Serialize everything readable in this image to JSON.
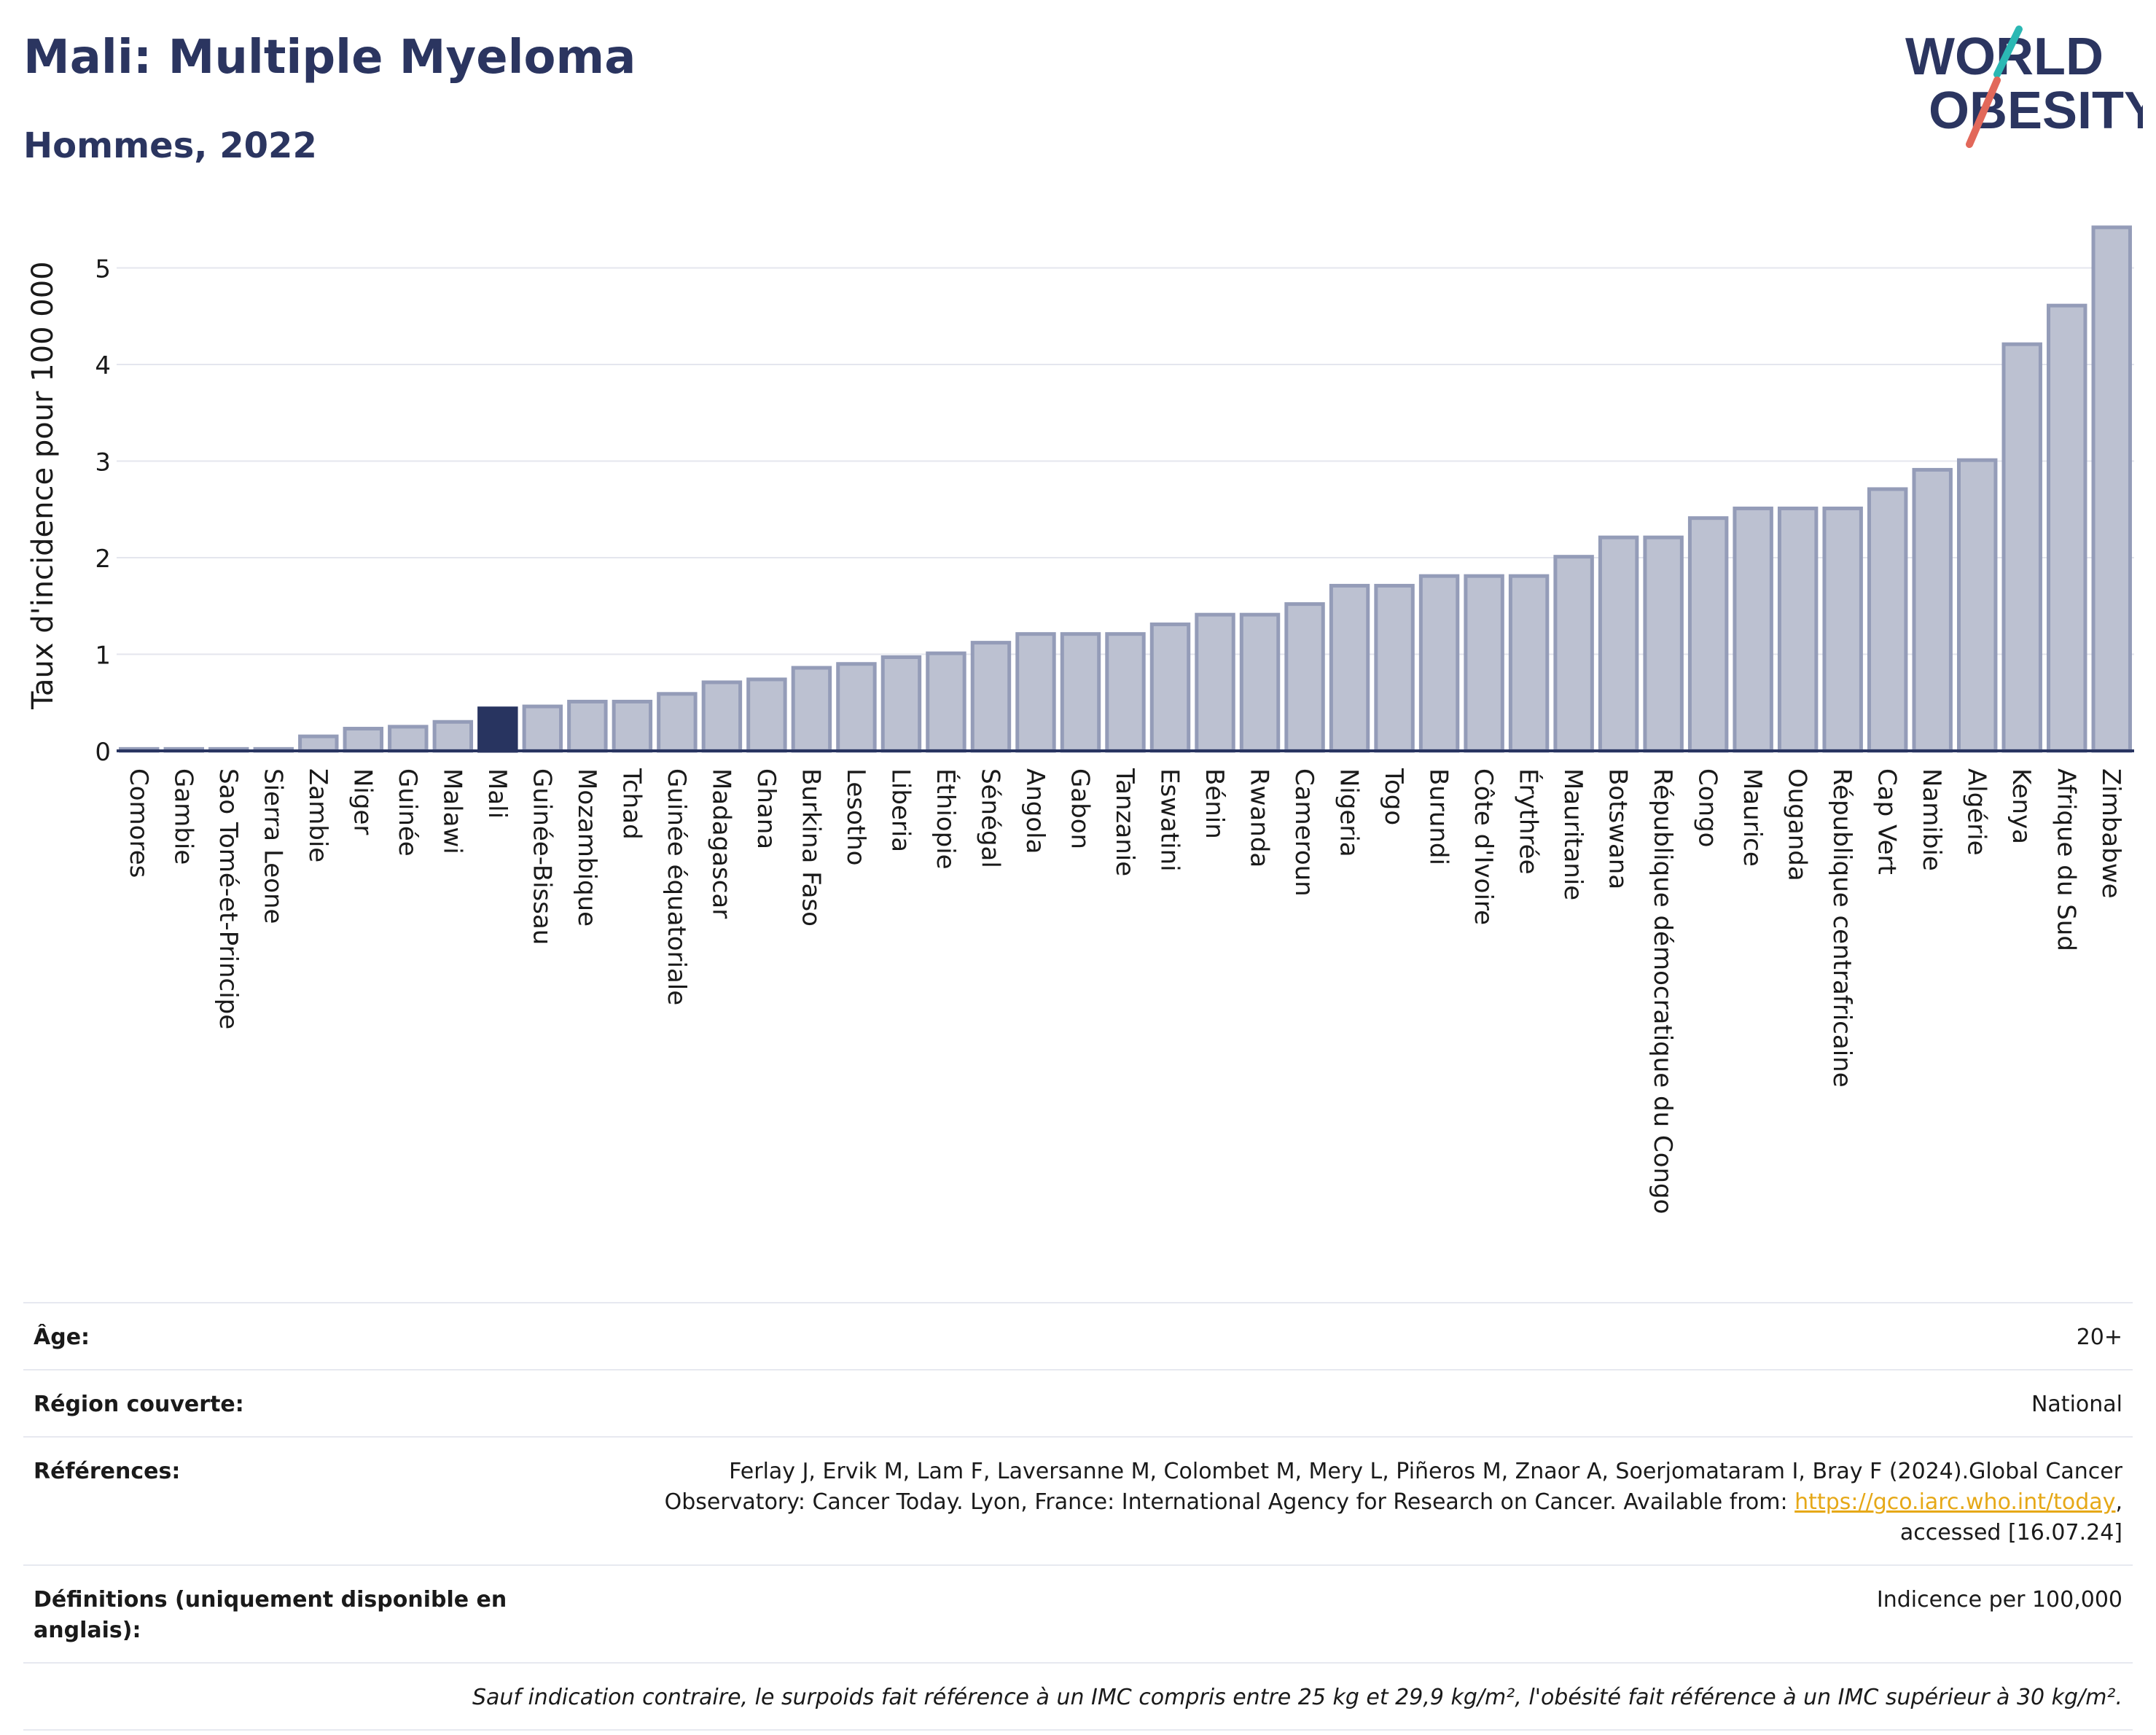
{
  "header": {
    "title": "Mali: Multiple Myeloma",
    "subtitle": "Hommes, 2022",
    "logo_line1": "WORLD",
    "logo_line2": "OBESITY"
  },
  "chart_data": {
    "type": "bar",
    "ylabel": "Taux d'incidence pour 100 000",
    "ylim": [
      0,
      5.5
    ],
    "yticks": [
      0,
      1,
      2,
      3,
      4,
      5
    ],
    "grid": true,
    "highlight": "Mali",
    "colors": {
      "bar": "#bcc1d1",
      "bar_stroke": "#949cb8",
      "highlight": "#283460",
      "axis": "#283460",
      "grid": "#e4e6ee"
    },
    "categories": [
      "Comores",
      "Gambie",
      "Sao Tomé-et-Principe",
      "Sierra Leone",
      "Zambie",
      "Niger",
      "Guinée",
      "Malawi",
      "Mali",
      "Guinée-Bissau",
      "Mozambique",
      "Tchad",
      "Guinée équatoriale",
      "Madagascar",
      "Ghana",
      "Burkina Faso",
      "Lesotho",
      "Liberia",
      "Éthiopie",
      "Sénégal",
      "Angola",
      "Gabon",
      "Tanzanie",
      "Eswatini",
      "Bénin",
      "Rwanda",
      "Cameroun",
      "Nigeria",
      "Togo",
      "Burundi",
      "Côte d'Ivoire",
      "Érythrée",
      "Mauritanie",
      "Botswana",
      "République démocratique du Congo",
      "Congo",
      "Maurice",
      "Ouganda",
      "République centrafricaine",
      "Cap Vert",
      "Namibie",
      "Algérie",
      "Kenya",
      "Afrique du Sud",
      "Zimbabwe"
    ],
    "values": [
      0.02,
      0.02,
      0.02,
      0.02,
      0.15,
      0.23,
      0.25,
      0.3,
      0.44,
      0.46,
      0.51,
      0.51,
      0.59,
      0.71,
      0.74,
      0.86,
      0.9,
      0.97,
      1.01,
      1.12,
      1.21,
      1.21,
      1.21,
      1.31,
      1.41,
      1.41,
      1.52,
      1.71,
      1.71,
      1.81,
      1.81,
      1.81,
      2.01,
      2.21,
      2.21,
      2.41,
      2.51,
      2.51,
      2.51,
      2.71,
      2.91,
      3.01,
      4.21,
      4.61,
      5.42
    ]
  },
  "meta": {
    "age_label": "Âge:",
    "age_value": "20+",
    "region_label": "Région couverte:",
    "region_value": "National",
    "refs_label": "Références:",
    "refs_text_1": "Ferlay J, Ervik M, Lam F, Laversanne M, Colombet M, Mery L, Piñeros M, Znaor A, Soerjomataram I, Bray F (2024).Global Cancer Observatory: Cancer Today. Lyon, France: International Agency for Research on Cancer. Available from: ",
    "refs_link": "https://gco.iarc.who.int/today",
    "refs_text_2": ", accessed [16.07.24]",
    "defs_label": "Définitions (uniquement disponible en anglais):",
    "defs_value": "Indicence per 100,000",
    "note": "Sauf indication contraire, le surpoids fait référence à un IMC compris entre 25 kg et 29,9 kg/m², l'obésité fait référence à un IMC supérieur à 30 kg/m²."
  }
}
